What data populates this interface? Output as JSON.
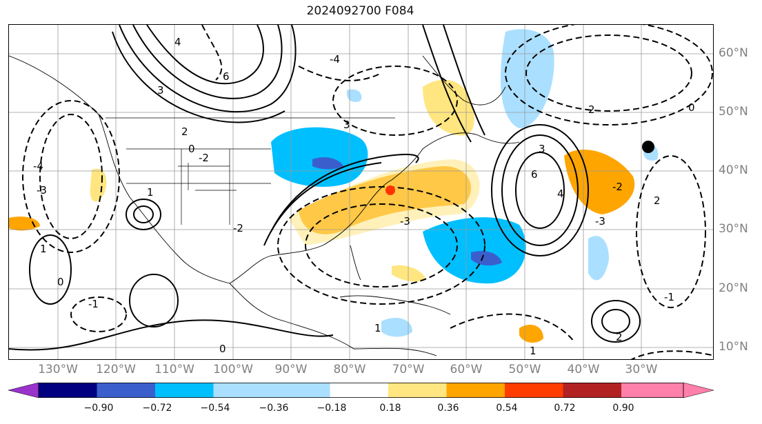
{
  "title": "2024092700 F084",
  "lon_labels": [
    "130°W",
    "120°W",
    "110°W",
    "100°W",
    "90°W",
    "80°W",
    "70°W",
    "60°W",
    "50°W",
    "40°W",
    "30°W"
  ],
  "lat_labels": [
    "60°N",
    "50°N",
    "40°N",
    "30°N",
    "20°N",
    "10°N"
  ],
  "colorbar": {
    "ticks": [
      "−0.90",
      "−0.72",
      "−0.54",
      "−0.36",
      "−0.18",
      "0.18",
      "0.36",
      "0.54",
      "0.72",
      "0.90"
    ],
    "colors": [
      "#9933cc",
      "#000080",
      "#3a5fcd",
      "#00bfff",
      "#aadfff",
      "#ffffff",
      "#ffe680",
      "#ffa500",
      "#ff3d00",
      "#b22222",
      "#ff80aa"
    ]
  },
  "contour_labels": [
    "6",
    "4",
    "3",
    "2",
    "1",
    "0",
    "-1",
    "-2",
    "-3",
    "-4",
    "6",
    "3",
    "2",
    "1",
    "0",
    "-2",
    "-3",
    "-4",
    "4",
    "3",
    "2",
    "1",
    "0",
    "-1",
    "-2",
    "-3",
    "2",
    "1",
    "0"
  ],
  "markers": {
    "red_dot_color": "#ff3300",
    "black_dot_color": "#000000"
  }
}
